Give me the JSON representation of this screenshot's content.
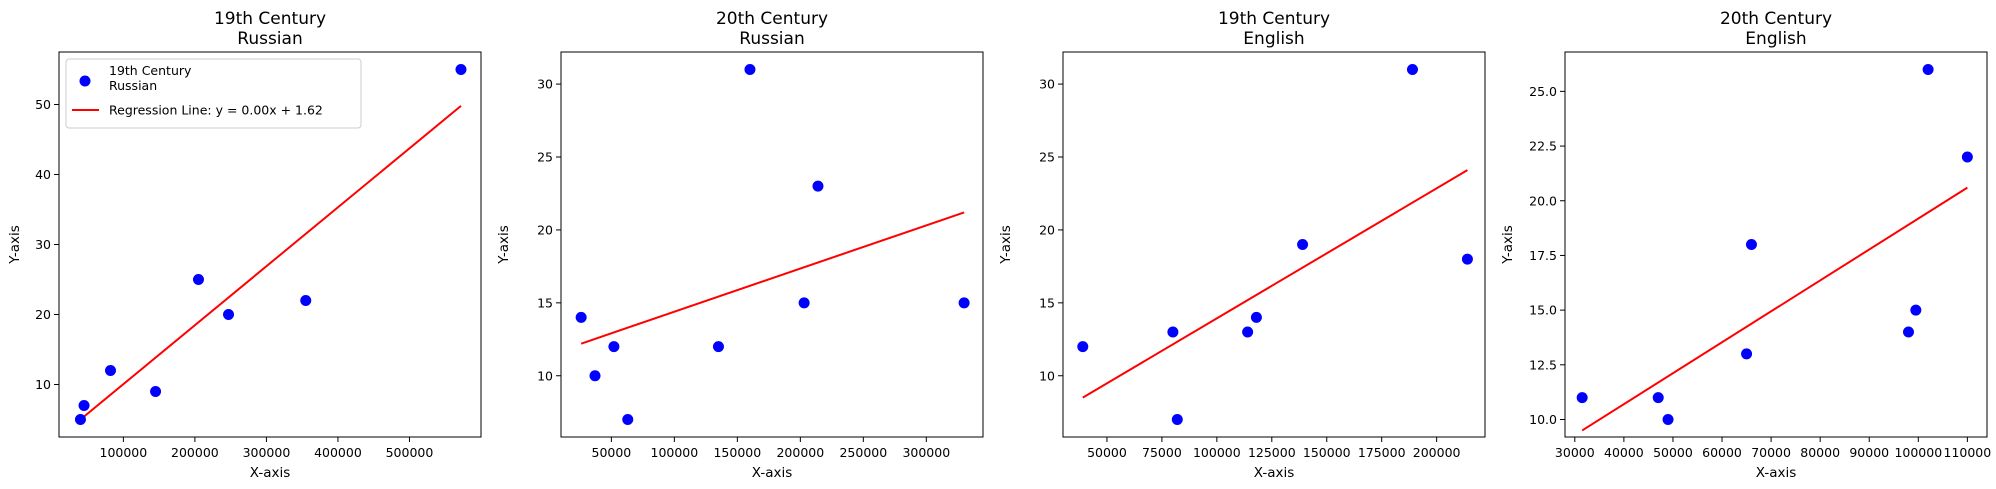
{
  "chart_data": [
    {
      "type": "scatter",
      "title_lines": [
        "19th Century",
        "Russian"
      ],
      "xlabel": "X-axis",
      "ylabel": "Y-axis",
      "xlim": [
        10000,
        600000
      ],
      "ylim": [
        2.5,
        57.5
      ],
      "xticks": [
        100000,
        200000,
        300000,
        400000,
        500000
      ],
      "xtick_labels": [
        "100000",
        "200000",
        "300000",
        "400000",
        "500000"
      ],
      "yticks": [
        10,
        20,
        30,
        40,
        50
      ],
      "ytick_labels": [
        "10",
        "20",
        "30",
        "40",
        "50"
      ],
      "points": [
        {
          "x": 40000,
          "y": 5
        },
        {
          "x": 45000,
          "y": 7
        },
        {
          "x": 82000,
          "y": 12
        },
        {
          "x": 145000,
          "y": 9
        },
        {
          "x": 205000,
          "y": 25
        },
        {
          "x": 247000,
          "y": 20
        },
        {
          "x": 355000,
          "y": 22
        },
        {
          "x": 572000,
          "y": 55
        }
      ],
      "regression": {
        "x": [
          40000,
          572000
        ],
        "y": [
          5.0,
          49.8
        ]
      },
      "point_color": "#0000ff",
      "line_color": "#ff0000",
      "legend": {
        "placement": "top-left",
        "scatter_label_lines": [
          "19th Century",
          "Russian"
        ],
        "line_label": "Regression Line: y = 0.00x + 1.62"
      }
    },
    {
      "type": "scatter",
      "title_lines": [
        "20th Century",
        "Russian"
      ],
      "xlabel": "X-axis",
      "ylabel": "Y-axis",
      "xlim": [
        10000,
        345000
      ],
      "ylim": [
        5.8,
        32.2
      ],
      "xticks": [
        50000,
        100000,
        150000,
        200000,
        250000,
        300000
      ],
      "xtick_labels": [
        "50000",
        "100000",
        "150000",
        "200000",
        "250000",
        "300000"
      ],
      "yticks": [
        10,
        15,
        20,
        25,
        30
      ],
      "ytick_labels": [
        "10",
        "15",
        "20",
        "25",
        "30"
      ],
      "points": [
        {
          "x": 26000,
          "y": 14
        },
        {
          "x": 37000,
          "y": 10
        },
        {
          "x": 52000,
          "y": 12
        },
        {
          "x": 63000,
          "y": 7
        },
        {
          "x": 135000,
          "y": 12
        },
        {
          "x": 160000,
          "y": 31
        },
        {
          "x": 203000,
          "y": 15
        },
        {
          "x": 214000,
          "y": 23
        },
        {
          "x": 330000,
          "y": 15
        }
      ],
      "regression": {
        "x": [
          26000,
          330000
        ],
        "y": [
          12.2,
          21.2
        ]
      },
      "point_color": "#0000ff",
      "line_color": "#ff0000"
    },
    {
      "type": "scatter",
      "title_lines": [
        "19th Century",
        "English"
      ],
      "xlabel": "X-axis",
      "ylabel": "Y-axis",
      "xlim": [
        30000,
        222000
      ],
      "ylim": [
        5.8,
        32.2
      ],
      "xticks": [
        50000,
        75000,
        100000,
        125000,
        150000,
        175000,
        200000
      ],
      "xtick_labels": [
        "50000",
        "75000",
        "100000",
        "125000",
        "150000",
        "175000",
        "200000"
      ],
      "yticks": [
        10,
        15,
        20,
        25,
        30
      ],
      "ytick_labels": [
        "10",
        "15",
        "20",
        "25",
        "30"
      ],
      "points": [
        {
          "x": 39000,
          "y": 12
        },
        {
          "x": 80000,
          "y": 13
        },
        {
          "x": 82000,
          "y": 7
        },
        {
          "x": 114000,
          "y": 13
        },
        {
          "x": 118000,
          "y": 14
        },
        {
          "x": 139000,
          "y": 19
        },
        {
          "x": 189000,
          "y": 31
        },
        {
          "x": 214000,
          "y": 18
        }
      ],
      "regression": {
        "x": [
          39000,
          214000
        ],
        "y": [
          8.5,
          24.1
        ]
      },
      "point_color": "#0000ff",
      "line_color": "#ff0000"
    },
    {
      "type": "scatter",
      "title_lines": [
        "20th Century",
        "English"
      ],
      "xlabel": "X-axis",
      "ylabel": "Y-axis",
      "xlim": [
        28000,
        114000
      ],
      "ylim": [
        9.2,
        26.8
      ],
      "xticks": [
        30000,
        40000,
        50000,
        60000,
        70000,
        80000,
        90000,
        100000,
        110000
      ],
      "xtick_labels": [
        "30000",
        "40000",
        "50000",
        "60000",
        "70000",
        "80000",
        "90000",
        "100000",
        "110000"
      ],
      "yticks": [
        10.0,
        12.5,
        15.0,
        17.5,
        20.0,
        22.5,
        25.0
      ],
      "ytick_labels": [
        "10.0",
        "12.5",
        "15.0",
        "17.5",
        "20.0",
        "22.5",
        "25.0"
      ],
      "points": [
        {
          "x": 31500,
          "y": 11
        },
        {
          "x": 47000,
          "y": 11
        },
        {
          "x": 49000,
          "y": 10
        },
        {
          "x": 65000,
          "y": 13
        },
        {
          "x": 66000,
          "y": 18
        },
        {
          "x": 98000,
          "y": 14
        },
        {
          "x": 99500,
          "y": 15
        },
        {
          "x": 102000,
          "y": 26
        },
        {
          "x": 110000,
          "y": 22
        }
      ],
      "regression": {
        "x": [
          31500,
          110000
        ],
        "y": [
          9.5,
          20.6
        ]
      },
      "point_color": "#0000ff",
      "line_color": "#ff0000"
    }
  ]
}
